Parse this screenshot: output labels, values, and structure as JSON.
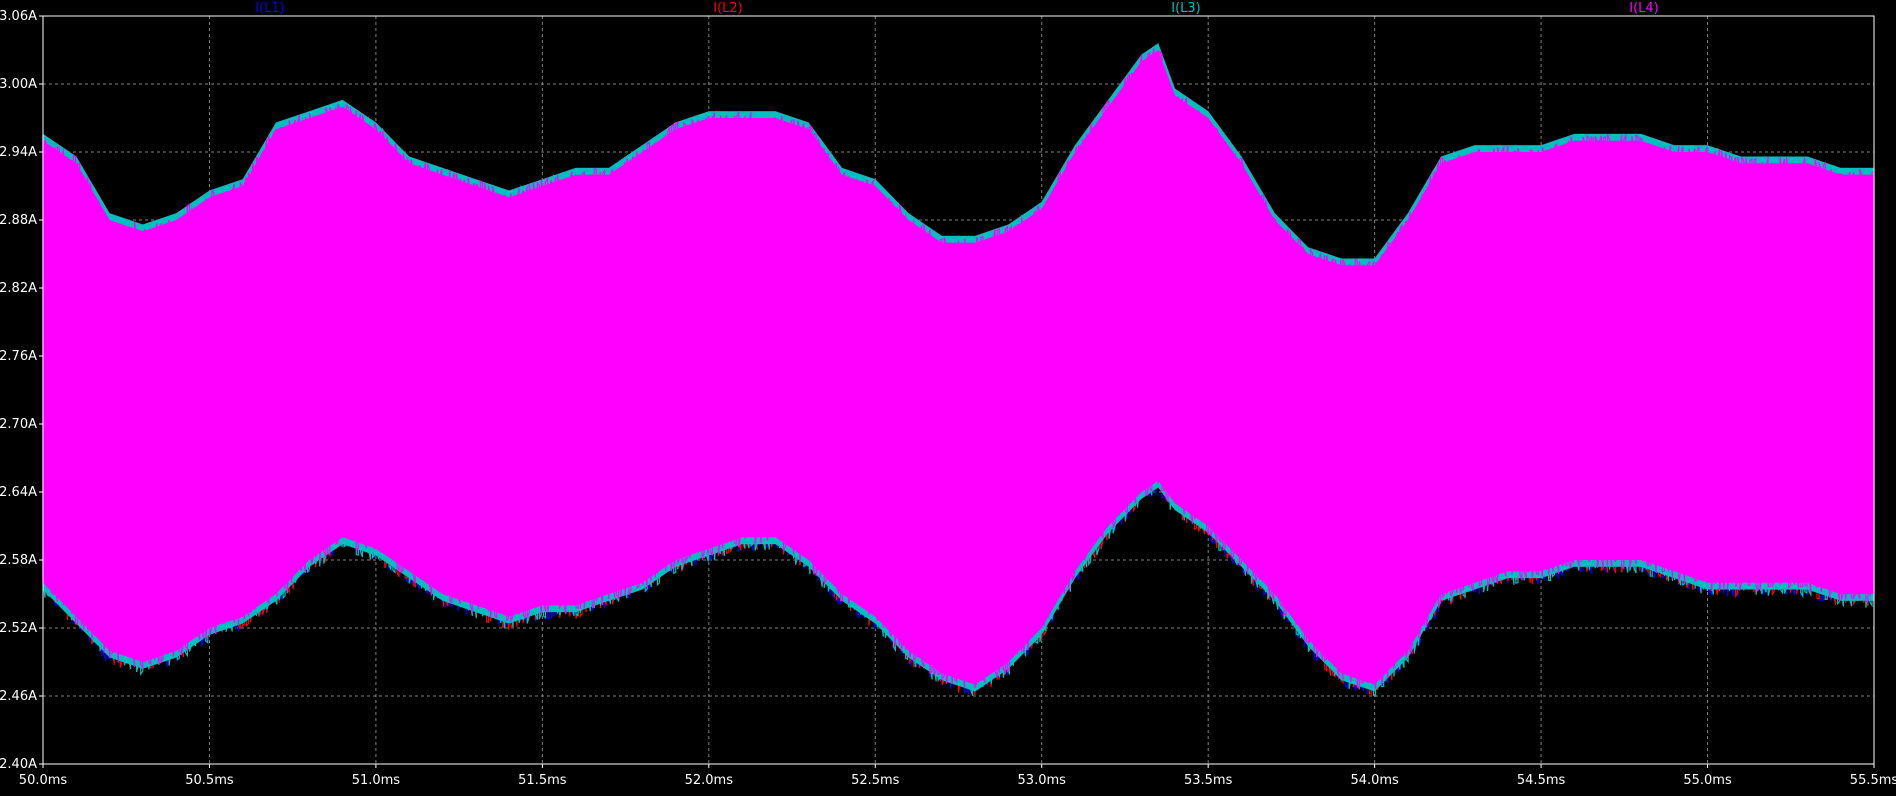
{
  "chart_data": {
    "type": "line",
    "title": "",
    "xlabel": "",
    "ylabel": "",
    "xlim": [
      50.0,
      55.5
    ],
    "ylim": [
      2.4,
      3.06
    ],
    "grid": true,
    "legend": "top",
    "x_ticks": [
      "50.0ms",
      "50.5ms",
      "51.0ms",
      "51.5ms",
      "52.0ms",
      "52.5ms",
      "53.0ms",
      "53.5ms",
      "54.0ms",
      "54.5ms",
      "55.0ms",
      "55.5ms"
    ],
    "x_tick_values": [
      50.0,
      50.5,
      51.0,
      51.5,
      52.0,
      52.5,
      53.0,
      53.5,
      54.0,
      54.5,
      55.0,
      55.5
    ],
    "y_ticks": [
      "3.06A",
      "3.00A",
      "2.94A",
      "2.88A",
      "2.82A",
      "2.76A",
      "2.70A",
      "2.64A",
      "2.58A",
      "2.52A",
      "2.46A",
      "2.40A"
    ],
    "y_tick_values": [
      3.06,
      3.0,
      2.94,
      2.88,
      2.82,
      2.76,
      2.7,
      2.64,
      2.58,
      2.52,
      2.46,
      2.4
    ],
    "envelope_x": [
      50.0,
      50.1,
      50.2,
      50.3,
      50.4,
      50.5,
      50.6,
      50.7,
      50.8,
      50.9,
      51.0,
      51.1,
      51.2,
      51.3,
      51.4,
      51.5,
      51.6,
      51.7,
      51.8,
      51.9,
      52.0,
      52.1,
      52.2,
      52.3,
      52.4,
      52.5,
      52.6,
      52.7,
      52.8,
      52.9,
      53.0,
      53.1,
      53.2,
      53.3,
      53.35,
      53.4,
      53.5,
      53.6,
      53.7,
      53.8,
      53.9,
      54.0,
      54.1,
      54.2,
      54.3,
      54.4,
      54.5,
      54.6,
      54.7,
      54.8,
      54.9,
      55.0,
      55.1,
      55.2,
      55.3,
      55.4,
      55.5
    ],
    "series": [
      {
        "name": "I(L1)",
        "color": "#0000ff",
        "upper": [
          2.95,
          2.93,
          2.88,
          2.87,
          2.88,
          2.9,
          2.91,
          2.96,
          2.97,
          2.98,
          2.96,
          2.93,
          2.92,
          2.91,
          2.9,
          2.91,
          2.92,
          2.92,
          2.94,
          2.96,
          2.97,
          2.97,
          2.97,
          2.96,
          2.92,
          2.91,
          2.88,
          2.86,
          2.86,
          2.87,
          2.89,
          2.94,
          2.98,
          3.02,
          3.03,
          2.99,
          2.97,
          2.93,
          2.88,
          2.85,
          2.84,
          2.84,
          2.88,
          2.93,
          2.94,
          2.94,
          2.94,
          2.95,
          2.95,
          2.95,
          2.94,
          2.94,
          2.93,
          2.93,
          2.93,
          2.92,
          2.92
        ],
        "lower": [
          2.56,
          2.53,
          2.5,
          2.49,
          2.5,
          2.52,
          2.53,
          2.55,
          2.58,
          2.6,
          2.59,
          2.57,
          2.55,
          2.54,
          2.53,
          2.54,
          2.54,
          2.55,
          2.56,
          2.58,
          2.59,
          2.6,
          2.6,
          2.58,
          2.55,
          2.53,
          2.5,
          2.48,
          2.47,
          2.49,
          2.52,
          2.57,
          2.61,
          2.64,
          2.65,
          2.63,
          2.61,
          2.58,
          2.55,
          2.51,
          2.48,
          2.47,
          2.5,
          2.55,
          2.56,
          2.57,
          2.57,
          2.58,
          2.58,
          2.58,
          2.57,
          2.56,
          2.56,
          2.56,
          2.56,
          2.55,
          2.55
        ]
      },
      {
        "name": "I(L2)",
        "color": "#ff0000",
        "upper": [
          2.95,
          2.93,
          2.88,
          2.87,
          2.88,
          2.9,
          2.91,
          2.96,
          2.97,
          2.98,
          2.96,
          2.93,
          2.92,
          2.91,
          2.9,
          2.91,
          2.92,
          2.92,
          2.94,
          2.96,
          2.97,
          2.97,
          2.97,
          2.96,
          2.92,
          2.91,
          2.88,
          2.86,
          2.86,
          2.87,
          2.89,
          2.94,
          2.98,
          3.02,
          3.03,
          2.99,
          2.97,
          2.93,
          2.88,
          2.85,
          2.84,
          2.84,
          2.88,
          2.93,
          2.94,
          2.94,
          2.94,
          2.95,
          2.95,
          2.95,
          2.94,
          2.94,
          2.93,
          2.93,
          2.93,
          2.92,
          2.92
        ],
        "lower": [
          2.56,
          2.53,
          2.5,
          2.49,
          2.5,
          2.52,
          2.53,
          2.55,
          2.58,
          2.6,
          2.59,
          2.57,
          2.55,
          2.54,
          2.53,
          2.54,
          2.54,
          2.55,
          2.56,
          2.58,
          2.59,
          2.6,
          2.6,
          2.58,
          2.55,
          2.53,
          2.5,
          2.48,
          2.47,
          2.49,
          2.52,
          2.57,
          2.61,
          2.64,
          2.65,
          2.63,
          2.61,
          2.58,
          2.55,
          2.51,
          2.48,
          2.47,
          2.5,
          2.55,
          2.56,
          2.57,
          2.57,
          2.58,
          2.58,
          2.58,
          2.57,
          2.56,
          2.56,
          2.56,
          2.56,
          2.55,
          2.55
        ]
      },
      {
        "name": "I(L3)",
        "color": "#00bfbf",
        "upper": [
          2.95,
          2.93,
          2.88,
          2.87,
          2.88,
          2.9,
          2.91,
          2.96,
          2.97,
          2.98,
          2.96,
          2.93,
          2.92,
          2.91,
          2.9,
          2.91,
          2.92,
          2.92,
          2.94,
          2.96,
          2.97,
          2.97,
          2.97,
          2.96,
          2.92,
          2.91,
          2.88,
          2.86,
          2.86,
          2.87,
          2.89,
          2.94,
          2.98,
          3.02,
          3.03,
          2.99,
          2.97,
          2.93,
          2.88,
          2.85,
          2.84,
          2.84,
          2.88,
          2.93,
          2.94,
          2.94,
          2.94,
          2.95,
          2.95,
          2.95,
          2.94,
          2.94,
          2.93,
          2.93,
          2.93,
          2.92,
          2.92
        ],
        "lower": [
          2.56,
          2.53,
          2.5,
          2.49,
          2.5,
          2.52,
          2.53,
          2.55,
          2.58,
          2.6,
          2.59,
          2.57,
          2.55,
          2.54,
          2.53,
          2.54,
          2.54,
          2.55,
          2.56,
          2.58,
          2.59,
          2.6,
          2.6,
          2.58,
          2.55,
          2.53,
          2.5,
          2.48,
          2.47,
          2.49,
          2.52,
          2.57,
          2.61,
          2.64,
          2.65,
          2.63,
          2.61,
          2.58,
          2.55,
          2.51,
          2.48,
          2.47,
          2.5,
          2.55,
          2.56,
          2.57,
          2.57,
          2.58,
          2.58,
          2.58,
          2.57,
          2.56,
          2.56,
          2.56,
          2.56,
          2.55,
          2.55
        ]
      },
      {
        "name": "I(L4)",
        "color": "#ff00ff",
        "upper": [
          2.95,
          2.93,
          2.88,
          2.87,
          2.88,
          2.9,
          2.91,
          2.96,
          2.97,
          2.98,
          2.96,
          2.93,
          2.92,
          2.91,
          2.9,
          2.91,
          2.92,
          2.92,
          2.94,
          2.96,
          2.97,
          2.97,
          2.97,
          2.96,
          2.92,
          2.91,
          2.88,
          2.86,
          2.86,
          2.87,
          2.89,
          2.94,
          2.98,
          3.02,
          3.03,
          2.99,
          2.97,
          2.93,
          2.88,
          2.85,
          2.84,
          2.84,
          2.88,
          2.93,
          2.94,
          2.94,
          2.94,
          2.95,
          2.95,
          2.95,
          2.94,
          2.94,
          2.93,
          2.93,
          2.93,
          2.92,
          2.92
        ],
        "lower": [
          2.56,
          2.53,
          2.5,
          2.49,
          2.5,
          2.52,
          2.53,
          2.55,
          2.58,
          2.6,
          2.59,
          2.57,
          2.55,
          2.54,
          2.53,
          2.54,
          2.54,
          2.55,
          2.56,
          2.58,
          2.59,
          2.6,
          2.6,
          2.58,
          2.55,
          2.53,
          2.5,
          2.48,
          2.47,
          2.49,
          2.52,
          2.57,
          2.61,
          2.64,
          2.65,
          2.63,
          2.61,
          2.58,
          2.55,
          2.51,
          2.48,
          2.47,
          2.5,
          2.55,
          2.56,
          2.57,
          2.57,
          2.58,
          2.58,
          2.58,
          2.57,
          2.56,
          2.56,
          2.56,
          2.56,
          2.55,
          2.55
        ]
      }
    ]
  }
}
